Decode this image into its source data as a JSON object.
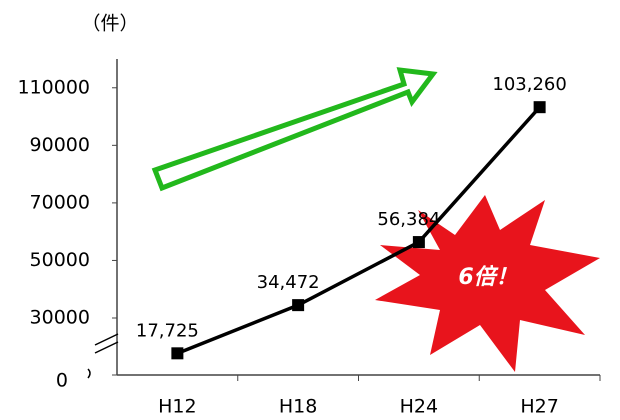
{
  "chart_data": {
    "type": "line",
    "unit_label": "（件）",
    "categories": [
      "H12",
      "H18",
      "H24",
      "H27"
    ],
    "values": [
      17725,
      34472,
      56384,
      103260
    ],
    "value_labels": [
      "17,725",
      "34,472",
      "56,384",
      "103,260"
    ],
    "color": "#000000",
    "ylim": [
      0,
      120000
    ],
    "yticks": [
      0,
      30000,
      50000,
      70000,
      90000,
      110000
    ],
    "axis_break": true,
    "annotation": "6倍！"
  }
}
